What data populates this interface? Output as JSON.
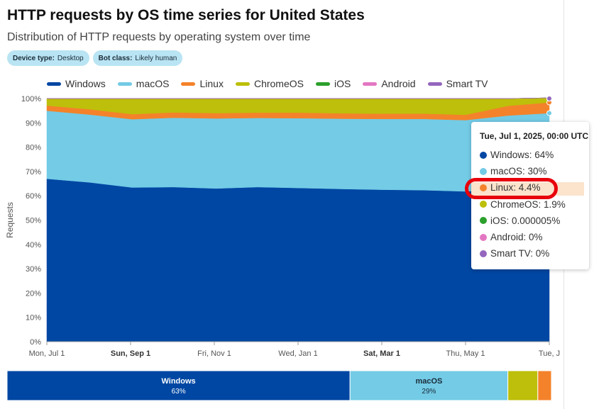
{
  "header": {
    "title": "HTTP requests by OS time series for United States",
    "subtitle": "Distribution of HTTP requests by operating system over time"
  },
  "filters": [
    {
      "key": "Device type:",
      "value": "Desktop"
    },
    {
      "key": "Bot class:",
      "value": "Likely human"
    }
  ],
  "colors": {
    "Windows": "#0047a3",
    "macOS": "#73cbe6",
    "Linux": "#f4822a",
    "ChromeOS": "#bdbf0a",
    "iOS": "#2ca02c",
    "Android": "#e377c2",
    "Smart TV": "#9467bd"
  },
  "tooltip": {
    "title": "Tue, Jul 1, 2025, 00:00 UTC",
    "rows": [
      {
        "label": "Windows: 64%",
        "series": "Windows"
      },
      {
        "label": "macOS: 30%",
        "series": "macOS"
      },
      {
        "label": "Linux: 4.4%",
        "series": "Linux"
      },
      {
        "label": "ChromeOS: 1.9%",
        "series": "ChromeOS"
      },
      {
        "label": "iOS: 0.000005%",
        "series": "iOS"
      },
      {
        "label": "Android: 0%",
        "series": "Android"
      },
      {
        "label": "Smart TV: 0%",
        "series": "Smart TV"
      }
    ]
  },
  "chart_data": {
    "type": "area",
    "stacked": true,
    "ylabel": "Requests",
    "ylim": [
      0,
      100
    ],
    "yticks": [
      "0%",
      "10%",
      "20%",
      "30%",
      "40%",
      "50%",
      "60%",
      "70%",
      "80%",
      "90%",
      "100%"
    ],
    "x_tick_labels": [
      "Mon, Jul 1",
      "Sun, Sep 1",
      "Fri, Nov 1",
      "Wed, Jan 1",
      "Sat, Mar 1",
      "Thu, May 1",
      "Tue, J"
    ],
    "x_tick_bold": [
      false,
      true,
      false,
      false,
      true,
      false,
      false
    ],
    "x": [
      "2024-07-01",
      "2024-08-01",
      "2024-09-01",
      "2024-10-01",
      "2024-11-01",
      "2024-12-01",
      "2025-01-01",
      "2025-02-01",
      "2025-03-01",
      "2025-04-01",
      "2025-05-01",
      "2025-06-01",
      "2025-07-01"
    ],
    "series": [
      {
        "name": "Windows",
        "values": [
          67,
          65.5,
          63.4,
          63.6,
          63,
          63.6,
          63.2,
          62.8,
          62.5,
          62.3,
          61.8,
          62.8,
          64
        ]
      },
      {
        "name": "macOS",
        "values": [
          28,
          27.9,
          28.1,
          28.5,
          28.8,
          28.4,
          28.7,
          28.9,
          29.1,
          29.3,
          29.3,
          30.2,
          30
        ]
      },
      {
        "name": "Linux",
        "values": [
          2.1,
          2.2,
          2.1,
          2.2,
          2.2,
          2.2,
          2.3,
          2.2,
          2.2,
          2.2,
          2.2,
          4.0,
          4.4
        ]
      },
      {
        "name": "ChromeOS",
        "values": [
          2.9,
          4.4,
          6.4,
          5.7,
          6.0,
          5.8,
          5.8,
          6.1,
          6.2,
          6.2,
          6.7,
          3.0,
          1.9
        ]
      },
      {
        "name": "iOS",
        "values": [
          0,
          0,
          0,
          0,
          0,
          0,
          0,
          0,
          0,
          0,
          0,
          0,
          5e-06
        ]
      },
      {
        "name": "Android",
        "values": [
          0,
          0,
          0,
          0,
          0,
          0,
          0,
          0,
          0,
          0,
          0,
          0,
          0
        ]
      },
      {
        "name": "Smart TV",
        "values": [
          0,
          0,
          0,
          0,
          0,
          0,
          0,
          0,
          0,
          0,
          0,
          0,
          0
        ]
      }
    ],
    "summary_bar": [
      {
        "name": "Windows",
        "value": 63,
        "label": "63%"
      },
      {
        "name": "macOS",
        "value": 29,
        "label": "29%"
      },
      {
        "name": "ChromeOS",
        "value": 5.5,
        "label": ""
      },
      {
        "name": "Linux",
        "value": 2.5,
        "label": ""
      }
    ],
    "grid": true,
    "legend": "top-left"
  }
}
